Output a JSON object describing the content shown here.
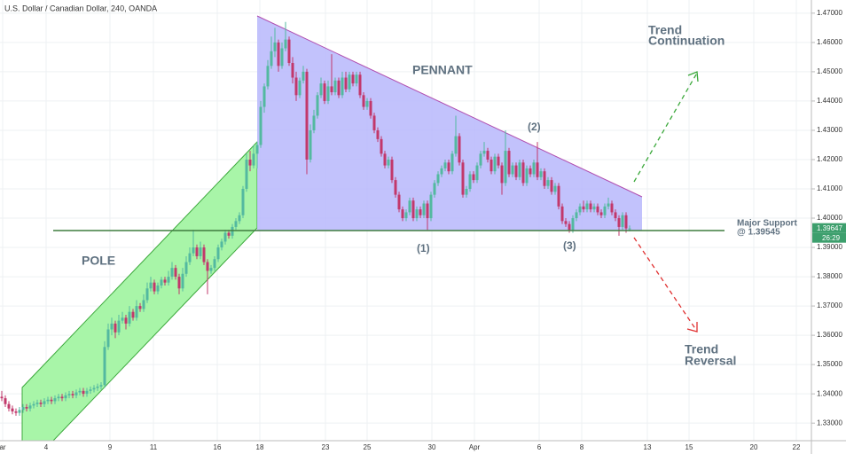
{
  "chart_data": {
    "type": "candlestick",
    "title": "U.S. Dollar / Canadian Dollar, 240, OANDA",
    "up_color": "#53b9a0",
    "down_color": "#c2386b",
    "grid": true,
    "ylim": [
      1.324,
      1.4745
    ],
    "yticks": [
      {
        "value": 1.33,
        "label": "1.33000"
      },
      {
        "value": 1.34,
        "label": "1.34000"
      },
      {
        "value": 1.35,
        "label": "1.35000"
      },
      {
        "value": 1.36,
        "label": "1.36000"
      },
      {
        "value": 1.37,
        "label": "1.37000"
      },
      {
        "value": 1.38,
        "label": "1.38000"
      },
      {
        "value": 1.39,
        "label": "1.39000"
      },
      {
        "value": 1.4,
        "label": "1.40000"
      },
      {
        "value": 1.41,
        "label": "1.41000"
      },
      {
        "value": 1.42,
        "label": "1.42000"
      },
      {
        "value": 1.43,
        "label": "1.43000"
      },
      {
        "value": 1.44,
        "label": "1.44000"
      },
      {
        "value": 1.45,
        "label": "1.45000"
      },
      {
        "value": 1.46,
        "label": "1.46000"
      },
      {
        "value": 1.47,
        "label": "1.47000"
      }
    ],
    "xlim": [
      -0.5,
      228.25
    ],
    "xticks": [
      {
        "value": 0.25,
        "label": "ar"
      },
      {
        "value": 12.5,
        "label": "4"
      },
      {
        "value": 30.5,
        "label": "9"
      },
      {
        "value": 42.75,
        "label": "11"
      },
      {
        "value": 60.75,
        "label": "16"
      },
      {
        "value": 72.75,
        "label": "18"
      },
      {
        "value": 91.25,
        "label": "23"
      },
      {
        "value": 103,
        "label": "25"
      },
      {
        "value": 121.25,
        "label": "30"
      },
      {
        "value": 133.25,
        "label": "Apr"
      },
      {
        "value": 151.5,
        "label": "6"
      },
      {
        "value": 163.5,
        "label": "8"
      },
      {
        "value": 182,
        "label": "13"
      },
      {
        "value": 193.75,
        "label": "15"
      },
      {
        "value": 212,
        "label": "20"
      },
      {
        "value": 224,
        "label": "22"
      }
    ],
    "last_price": {
      "value": 1.39647,
      "label": "1.39647"
    },
    "countdown": "26:29",
    "annotations": {
      "pennant": "PENNANT",
      "pole": "POLE",
      "trend_continuation": [
        "Trend",
        "Continuation"
      ],
      "trend_reversal": [
        "Trend",
        "Reversal"
      ],
      "point_1": "(1)",
      "point_2": "(2)",
      "point_3": "(3)",
      "support": [
        "Major Support",
        "@ 1.39545"
      ]
    },
    "ohlc": [
      [
        1.339,
        1.341,
        1.3375,
        1.3385
      ],
      [
        1.3385,
        1.3395,
        1.3355,
        1.3365
      ],
      [
        1.3365,
        1.3375,
        1.334,
        1.335
      ],
      [
        1.335,
        1.336,
        1.333,
        1.334
      ],
      [
        1.334,
        1.335,
        1.3325,
        1.3335
      ],
      [
        1.3335,
        1.3355,
        1.3325,
        1.3345
      ],
      [
        1.3345,
        1.3365,
        1.3335,
        1.3355
      ],
      [
        1.3355,
        1.3365,
        1.334,
        1.335
      ],
      [
        1.335,
        1.337,
        1.334,
        1.336
      ],
      [
        1.336,
        1.3375,
        1.335,
        1.3365
      ],
      [
        1.3365,
        1.338,
        1.3355,
        1.337
      ],
      [
        1.337,
        1.338,
        1.3355,
        1.3365
      ],
      [
        1.3365,
        1.3385,
        1.3355,
        1.3375
      ],
      [
        1.3375,
        1.339,
        1.3365,
        1.338
      ],
      [
        1.338,
        1.339,
        1.3365,
        1.3375
      ],
      [
        1.3375,
        1.3395,
        1.3365,
        1.3385
      ],
      [
        1.3385,
        1.34,
        1.3375,
        1.339
      ],
      [
        1.339,
        1.34,
        1.3375,
        1.3385
      ],
      [
        1.3385,
        1.3405,
        1.3375,
        1.3395
      ],
      [
        1.3395,
        1.341,
        1.3385,
        1.34
      ],
      [
        1.34,
        1.341,
        1.3385,
        1.3395
      ],
      [
        1.3395,
        1.3415,
        1.3385,
        1.3405
      ],
      [
        1.3405,
        1.342,
        1.3395,
        1.341
      ],
      [
        1.341,
        1.342,
        1.339,
        1.34
      ],
      [
        1.34,
        1.342,
        1.339,
        1.341
      ],
      [
        1.341,
        1.3425,
        1.34,
        1.3415
      ],
      [
        1.3415,
        1.343,
        1.3405,
        1.342
      ],
      [
        1.342,
        1.3435,
        1.341,
        1.3425
      ],
      [
        1.3425,
        1.344,
        1.3415,
        1.343
      ],
      [
        1.343,
        1.358,
        1.342,
        1.356
      ],
      [
        1.356,
        1.364,
        1.355,
        1.362
      ],
      [
        1.362,
        1.366,
        1.36,
        1.364
      ],
      [
        1.364,
        1.365,
        1.359,
        1.361
      ],
      [
        1.361,
        1.367,
        1.36,
        1.365
      ],
      [
        1.365,
        1.368,
        1.364,
        1.366
      ],
      [
        1.366,
        1.367,
        1.362,
        1.364
      ],
      [
        1.364,
        1.37,
        1.363,
        1.368
      ],
      [
        1.368,
        1.369,
        1.365,
        1.366
      ],
      [
        1.366,
        1.372,
        1.365,
        1.37
      ],
      [
        1.37,
        1.371,
        1.368,
        1.369
      ],
      [
        1.369,
        1.374,
        1.368,
        1.372
      ],
      [
        1.372,
        1.378,
        1.371,
        1.376
      ],
      [
        1.376,
        1.38,
        1.375,
        1.378
      ],
      [
        1.378,
        1.379,
        1.374,
        1.375
      ],
      [
        1.375,
        1.378,
        1.374,
        1.377
      ],
      [
        1.377,
        1.38,
        1.376,
        1.379
      ],
      [
        1.379,
        1.38,
        1.377,
        1.378
      ],
      [
        1.378,
        1.382,
        1.377,
        1.38
      ],
      [
        1.38,
        1.385,
        1.379,
        1.383
      ],
      [
        1.383,
        1.384,
        1.379,
        1.38
      ],
      [
        1.38,
        1.381,
        1.374,
        1.376
      ],
      [
        1.376,
        1.383,
        1.375,
        1.381
      ],
      [
        1.381,
        1.387,
        1.38,
        1.385
      ],
      [
        1.385,
        1.39,
        1.384,
        1.388
      ],
      [
        1.388,
        1.396,
        1.387,
        1.39
      ],
      [
        1.39,
        1.391,
        1.386,
        1.387
      ],
      [
        1.387,
        1.392,
        1.386,
        1.39
      ],
      [
        1.39,
        1.391,
        1.384,
        1.385
      ],
      [
        1.385,
        1.386,
        1.374,
        1.382
      ],
      [
        1.382,
        1.384,
        1.381,
        1.383
      ],
      [
        1.383,
        1.387,
        1.382,
        1.386
      ],
      [
        1.386,
        1.391,
        1.385,
        1.39
      ],
      [
        1.39,
        1.393,
        1.389,
        1.392
      ],
      [
        1.392,
        1.396,
        1.391,
        1.395
      ],
      [
        1.395,
        1.396,
        1.393,
        1.394
      ],
      [
        1.394,
        1.398,
        1.393,
        1.397
      ],
      [
        1.397,
        1.4,
        1.396,
        1.399
      ],
      [
        1.399,
        1.402,
        1.398,
        1.401
      ],
      [
        1.401,
        1.411,
        1.4,
        1.41
      ],
      [
        1.41,
        1.422,
        1.409,
        1.42
      ],
      [
        1.42,
        1.423,
        1.416,
        1.418
      ],
      [
        1.418,
        1.425,
        1.417,
        1.422
      ],
      [
        1.422,
        1.426,
        1.417,
        1.425
      ],
      [
        1.425,
        1.44,
        1.424,
        1.438
      ],
      [
        1.438,
        1.446,
        1.436,
        1.445
      ],
      [
        1.445,
        1.454,
        1.444,
        1.452
      ],
      [
        1.452,
        1.462,
        1.451,
        1.457
      ],
      [
        1.457,
        1.465,
        1.455,
        1.46
      ],
      [
        1.46,
        1.461,
        1.45,
        1.452
      ],
      [
        1.452,
        1.46,
        1.451,
        1.458
      ],
      [
        1.458,
        1.467,
        1.457,
        1.461
      ],
      [
        1.461,
        1.462,
        1.452,
        1.453
      ],
      [
        1.453,
        1.455,
        1.446,
        1.448
      ],
      [
        1.448,
        1.45,
        1.44,
        1.442
      ],
      [
        1.442,
        1.448,
        1.441,
        1.447
      ],
      [
        1.447,
        1.452,
        1.446,
        1.45
      ],
      [
        1.45,
        1.451,
        1.415,
        1.42
      ],
      [
        1.42,
        1.432,
        1.419,
        1.43
      ],
      [
        1.43,
        1.437,
        1.429,
        1.435
      ],
      [
        1.435,
        1.443,
        1.434,
        1.442
      ],
      [
        1.442,
        1.448,
        1.441,
        1.446
      ],
      [
        1.446,
        1.447,
        1.439,
        1.44
      ],
      [
        1.44,
        1.447,
        1.439,
        1.445
      ],
      [
        1.445,
        1.456,
        1.442,
        1.443
      ],
      [
        1.443,
        1.448,
        1.442,
        1.447
      ],
      [
        1.447,
        1.448,
        1.441,
        1.442
      ],
      [
        1.442,
        1.45,
        1.441,
        1.448
      ],
      [
        1.448,
        1.45,
        1.443,
        1.444
      ],
      [
        1.444,
        1.45,
        1.443,
        1.449
      ],
      [
        1.449,
        1.45,
        1.445,
        1.446
      ],
      [
        1.446,
        1.45,
        1.445,
        1.449
      ],
      [
        1.449,
        1.45,
        1.441,
        1.442
      ],
      [
        1.442,
        1.443,
        1.437,
        1.438
      ],
      [
        1.438,
        1.441,
        1.437,
        1.44
      ],
      [
        1.44,
        1.441,
        1.434,
        1.435
      ],
      [
        1.435,
        1.436,
        1.429,
        1.43
      ],
      [
        1.43,
        1.431,
        1.426,
        1.427
      ],
      [
        1.427,
        1.428,
        1.421,
        1.422
      ],
      [
        1.422,
        1.423,
        1.417,
        1.418
      ],
      [
        1.418,
        1.421,
        1.417,
        1.42
      ],
      [
        1.42,
        1.421,
        1.412,
        1.413
      ],
      [
        1.413,
        1.414,
        1.407,
        1.408
      ],
      [
        1.408,
        1.409,
        1.402,
        1.403
      ],
      [
        1.403,
        1.404,
        1.399,
        1.4
      ],
      [
        1.4,
        1.403,
        1.399,
        1.402
      ],
      [
        1.402,
        1.407,
        1.401,
        1.406
      ],
      [
        1.406,
        1.407,
        1.399,
        1.4
      ],
      [
        1.4,
        1.404,
        1.399,
        1.403
      ],
      [
        1.403,
        1.404,
        1.4,
        1.401
      ],
      [
        1.401,
        1.406,
        1.4,
        1.405
      ],
      [
        1.405,
        1.406,
        1.396,
        1.4
      ],
      [
        1.4,
        1.409,
        1.399,
        1.408
      ],
      [
        1.408,
        1.413,
        1.407,
        1.412
      ],
      [
        1.412,
        1.416,
        1.411,
        1.415
      ],
      [
        1.415,
        1.418,
        1.414,
        1.417
      ],
      [
        1.417,
        1.42,
        1.416,
        1.419
      ],
      [
        1.419,
        1.42,
        1.415,
        1.416
      ],
      [
        1.416,
        1.423,
        1.415,
        1.422
      ],
      [
        1.422,
        1.435,
        1.421,
        1.428
      ],
      [
        1.428,
        1.429,
        1.418,
        1.419
      ],
      [
        1.419,
        1.42,
        1.407,
        1.408
      ],
      [
        1.408,
        1.411,
        1.407,
        1.41
      ],
      [
        1.41,
        1.416,
        1.409,
        1.415
      ],
      [
        1.415,
        1.416,
        1.412,
        1.413
      ],
      [
        1.413,
        1.419,
        1.412,
        1.418
      ],
      [
        1.418,
        1.423,
        1.417,
        1.422
      ],
      [
        1.422,
        1.426,
        1.421,
        1.423
      ],
      [
        1.423,
        1.424,
        1.419,
        1.42
      ],
      [
        1.42,
        1.421,
        1.415,
        1.416
      ],
      [
        1.416,
        1.422,
        1.415,
        1.421
      ],
      [
        1.421,
        1.422,
        1.417,
        1.418
      ],
      [
        1.418,
        1.419,
        1.408,
        1.412
      ],
      [
        1.412,
        1.43,
        1.411,
        1.423
      ],
      [
        1.423,
        1.424,
        1.414,
        1.415
      ],
      [
        1.415,
        1.419,
        1.414,
        1.418
      ],
      [
        1.418,
        1.419,
        1.413,
        1.414
      ],
      [
        1.414,
        1.42,
        1.413,
        1.419
      ],
      [
        1.419,
        1.42,
        1.411,
        1.412
      ],
      [
        1.412,
        1.418,
        1.411,
        1.417
      ],
      [
        1.417,
        1.418,
        1.414,
        1.415
      ],
      [
        1.415,
        1.42,
        1.414,
        1.419
      ],
      [
        1.419,
        1.426,
        1.413,
        1.414
      ],
      [
        1.414,
        1.417,
        1.413,
        1.416
      ],
      [
        1.416,
        1.417,
        1.41,
        1.411
      ],
      [
        1.411,
        1.414,
        1.41,
        1.413
      ],
      [
        1.413,
        1.414,
        1.408,
        1.409
      ],
      [
        1.409,
        1.412,
        1.408,
        1.411
      ],
      [
        1.411,
        1.412,
        1.403,
        1.404
      ],
      [
        1.404,
        1.405,
        1.398,
        1.399
      ],
      [
        1.399,
        1.4,
        1.397,
        1.398
      ],
      [
        1.398,
        1.399,
        1.395,
        1.396
      ],
      [
        1.396,
        1.401,
        1.395,
        1.4
      ],
      [
        1.4,
        1.403,
        1.399,
        1.402
      ],
      [
        1.402,
        1.405,
        1.401,
        1.404
      ],
      [
        1.404,
        1.406,
        1.402,
        1.403
      ],
      [
        1.403,
        1.406,
        1.402,
        1.405
      ],
      [
        1.405,
        1.406,
        1.402,
        1.403
      ],
      [
        1.403,
        1.405,
        1.402,
        1.404
      ],
      [
        1.404,
        1.405,
        1.401,
        1.402
      ],
      [
        1.402,
        1.403,
        1.4,
        1.401
      ],
      [
        1.401,
        1.405,
        1.4,
        1.404
      ],
      [
        1.404,
        1.407,
        1.403,
        1.405
      ],
      [
        1.405,
        1.406,
        1.401,
        1.402
      ],
      [
        1.402,
        1.403,
        1.399,
        1.4
      ],
      [
        1.4,
        1.401,
        1.394,
        1.397
      ],
      [
        1.397,
        1.402,
        1.396,
        1.401
      ],
      [
        1.401,
        1.402,
        1.395,
        1.3965
      ],
      [
        1.3965,
        1.3975,
        1.3955,
        1.3965
      ]
    ]
  }
}
